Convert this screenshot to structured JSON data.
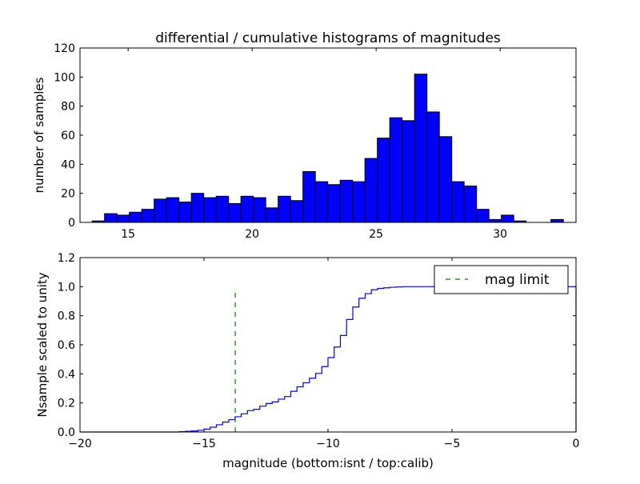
{
  "chart_data": [
    {
      "type": "bar",
      "title": "differential / cumulative histograms of magnitudes",
      "xlabel": "",
      "ylabel": "number of samples",
      "xlim": [
        13.06,
        33.06
      ],
      "ylim": [
        0,
        120
      ],
      "bin_start": 13.55,
      "bin_width": 0.5,
      "values": [
        1,
        6,
        5,
        7,
        9,
        16,
        17,
        14,
        20,
        17,
        18,
        13,
        18,
        17,
        10,
        18,
        15,
        35,
        28,
        26,
        29,
        28,
        44,
        58,
        72,
        70,
        102,
        76,
        59,
        28,
        25,
        9,
        2,
        5,
        1,
        0,
        0,
        2
      ],
      "xticks": [
        15,
        20,
        25,
        30
      ],
      "xtick_labels": [
        "15",
        "20",
        "25",
        "30"
      ],
      "yticks": [
        0,
        20,
        40,
        60,
        80,
        100,
        120
      ],
      "ytick_labels": [
        "0",
        "20",
        "40",
        "60",
        "80",
        "100",
        "120"
      ],
      "bar_color": "#0000ff"
    },
    {
      "type": "line",
      "title": "",
      "xlabel": "magnitude (bottom:isnt / top:calib)",
      "ylabel": "Nsample scaled to unity",
      "xlim": [
        -20,
        0
      ],
      "ylim": [
        0,
        1.2
      ],
      "step_start": -16.0,
      "step_width": 0.25,
      "values": [
        0.002,
        0.005,
        0.007,
        0.012,
        0.02,
        0.033,
        0.05,
        0.068,
        0.085,
        0.105,
        0.125,
        0.147,
        0.156,
        0.178,
        0.196,
        0.207,
        0.226,
        0.244,
        0.28,
        0.311,
        0.339,
        0.37,
        0.403,
        0.45,
        0.512,
        0.585,
        0.664,
        0.774,
        0.86,
        0.92,
        0.952,
        0.979,
        0.988,
        0.992,
        0.996,
        0.998
      ],
      "line_color": "#0000ff",
      "mag_limit": {
        "x": -13.74,
        "ymax": 0.97,
        "color": "#008000",
        "label": "mag limit"
      },
      "legend_position": "upper-right",
      "xticks": [
        -20,
        -15,
        -10,
        -5,
        0
      ],
      "xtick_labels": [
        "−20",
        "−15",
        "−10",
        "−5",
        "0"
      ],
      "yticks": [
        0,
        0.2,
        0.4,
        0.6,
        0.8,
        1.0,
        1.2
      ],
      "ytick_labels": [
        "0.0",
        "0.2",
        "0.4",
        "0.6",
        "0.8",
        "1.0",
        "1.2"
      ]
    }
  ]
}
